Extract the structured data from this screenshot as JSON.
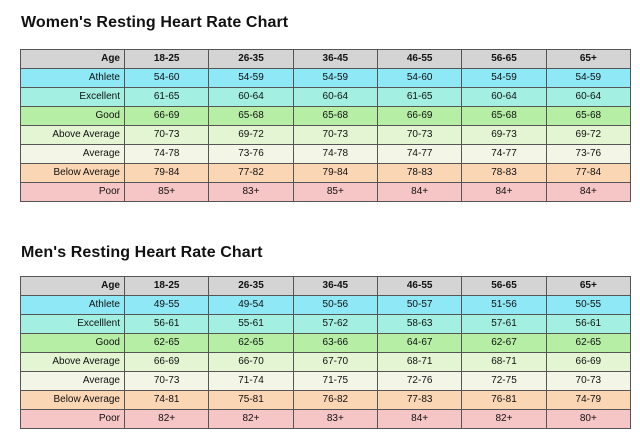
{
  "women": {
    "title": "Women's Resting Heart Rate Chart",
    "header": [
      "Age",
      "18-25",
      "26-35",
      "36-45",
      "46-55",
      "56-65",
      "65+"
    ],
    "rows": [
      {
        "label": "Athlete",
        "color": "#8ee8f6",
        "values": [
          "54-60",
          "54-59",
          "54-59",
          "54-60",
          "54-59",
          "54-59"
        ]
      },
      {
        "label": "Excellent",
        "color": "#a3f0e2",
        "values": [
          "61-65",
          "60-64",
          "60-64",
          "61-65",
          "60-64",
          "60-64"
        ]
      },
      {
        "label": "Good",
        "color": "#b6eea6",
        "values": [
          "66-69",
          "65-68",
          "65-68",
          "66-69",
          "65-68",
          "65-68"
        ]
      },
      {
        "label": "Above Average",
        "color": "#e3f5d2",
        "values": [
          "70-73",
          "69-72",
          "70-73",
          "70-73",
          "69-73",
          "69-72"
        ]
      },
      {
        "label": "Average",
        "color": "#f3f6e6",
        "values": [
          "74-78",
          "73-76",
          "74-78",
          "74-77",
          "74-77",
          "73-76"
        ]
      },
      {
        "label": "Below Average",
        "color": "#fbd6b4",
        "values": [
          "79-84",
          "77-82",
          "79-84",
          "78-83",
          "78-83",
          "77-84"
        ]
      },
      {
        "label": "Poor",
        "color": "#f6c5c5",
        "values": [
          "85+",
          "83+",
          "85+",
          "84+",
          "84+",
          "84+"
        ]
      }
    ]
  },
  "men": {
    "title": "Men's Resting Heart Rate Chart",
    "header": [
      "Age",
      "18-25",
      "26-35",
      "36-45",
      "46-55",
      "56-65",
      "65+"
    ],
    "rows": [
      {
        "label": "Athlete",
        "color": "#8ee8f6",
        "values": [
          "49-55",
          "49-54",
          "50-56",
          "50-57",
          "51-56",
          "50-55"
        ]
      },
      {
        "label": "Excelllent",
        "color": "#a3f0e2",
        "values": [
          "56-61",
          "55-61",
          "57-62",
          "58-63",
          "57-61",
          "56-61"
        ]
      },
      {
        "label": "Good",
        "color": "#b6eea6",
        "values": [
          "62-65",
          "62-65",
          "63-66",
          "64-67",
          "62-67",
          "62-65"
        ]
      },
      {
        "label": "Above Average",
        "color": "#e3f5d2",
        "values": [
          "66-69",
          "66-70",
          "67-70",
          "68-71",
          "68-71",
          "66-69"
        ]
      },
      {
        "label": "Average",
        "color": "#f3f6e6",
        "values": [
          "70-73",
          "71-74",
          "71-75",
          "72-76",
          "72-75",
          "70-73"
        ]
      },
      {
        "label": "Below Average",
        "color": "#fbd6b4",
        "values": [
          "74-81",
          "75-81",
          "76-82",
          "77-83",
          "76-81",
          "74-79"
        ]
      },
      {
        "label": "Poor",
        "color": "#f6c5c5",
        "values": [
          "82+",
          "82+",
          "83+",
          "84+",
          "82+",
          "80+"
        ]
      }
    ]
  }
}
